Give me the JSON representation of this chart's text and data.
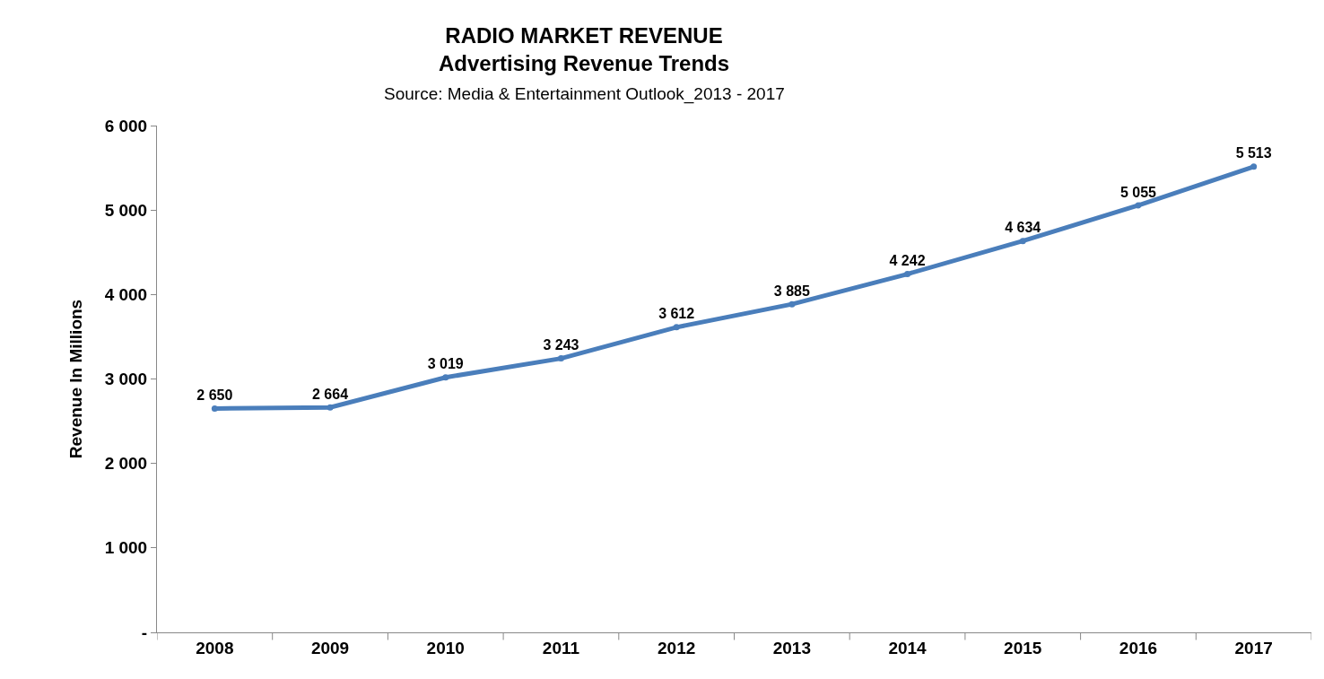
{
  "chart_data": {
    "type": "line",
    "title": "RADIO MARKET REVENUE",
    "subtitle": "Advertising Revenue Trends",
    "annotations": [
      "Source: Media & Entertainment Outlook_2013 - 2017"
    ],
    "ylabel": "Revenue In Millions",
    "categories": [
      "2008",
      "2009",
      "2010",
      "2011",
      "2012",
      "2013",
      "2014",
      "2015",
      "2016",
      "2017"
    ],
    "values": [
      2650,
      2664,
      3019,
      3243,
      3612,
      3885,
      4242,
      4634,
      5055,
      5513
    ],
    "value_labels": [
      "2 650",
      "2 664",
      "3 019",
      "3 243",
      "3 612",
      "3 885",
      "4 242",
      "4 634",
      "5 055",
      "5 513"
    ],
    "color": "#4a7ebb",
    "marker": "circle",
    "line_style": "solid",
    "grid": false,
    "ylim": [
      0,
      6000
    ],
    "yticks": [
      {
        "value": 0,
        "label": "-"
      },
      {
        "value": 1000,
        "label": "1 000"
      },
      {
        "value": 2000,
        "label": "2 000"
      },
      {
        "value": 3000,
        "label": "3 000"
      },
      {
        "value": 4000,
        "label": "4 000"
      },
      {
        "value": 5000,
        "label": "5 000"
      },
      {
        "value": 6000,
        "label": "6 000"
      }
    ]
  }
}
